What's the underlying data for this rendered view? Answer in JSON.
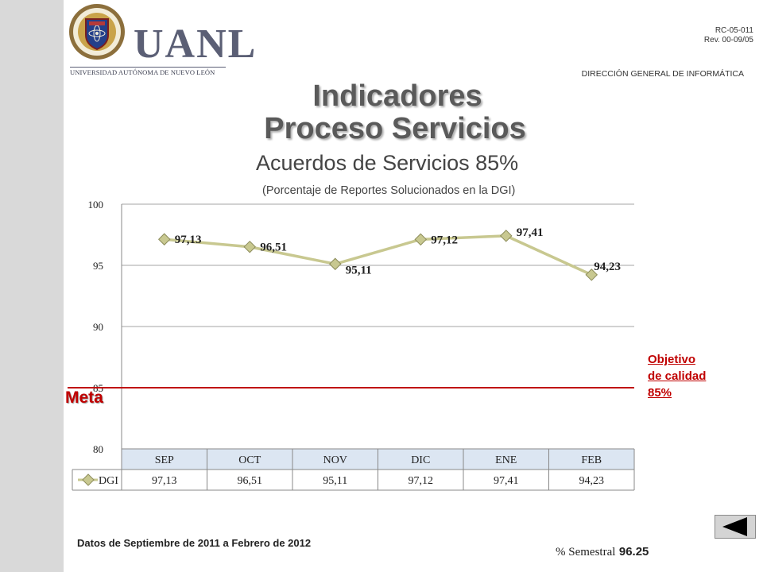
{
  "header": {
    "logo_text": "UANL",
    "logo_subtext": "UNIVERSIDAD AUTÓNOMA DE NUEVO LEÓN",
    "doc_code": "RC-05-011",
    "doc_rev": "Rev. 00-09/05",
    "department": "DIRECCIÓN GENERAL DE INFORMÁTICA"
  },
  "title_line1": "Indicadores",
  "title_line2": "Proceso Servicios",
  "subtitle": "Acuerdos de Servicios  85%",
  "subtitle2": "(Porcentaje de Reportes Solucionados en la DGI)",
  "meta_label": "Meta",
  "objective": {
    "line1": "Objetivo",
    "line2": "de calidad",
    "line3": "85%"
  },
  "footnote": "Datos de Septiembre de 2011  a Febrero de 2012",
  "semestral_label": "% Semestral",
  "semestral_value": "96.25",
  "colors": {
    "series": "#c8c890",
    "target_line": "#c00000",
    "table_header_bg": "#dce6f2",
    "title": "#5a5a5a"
  },
  "chart_data": {
    "type": "line",
    "categories": [
      "SEP",
      "OCT",
      "NOV",
      "DIC",
      "ENE",
      "FEB"
    ],
    "series": [
      {
        "name": "DGI",
        "values": [
          97.13,
          96.51,
          95.11,
          97.12,
          97.41,
          94.23
        ],
        "labels": [
          "97,13",
          "96,51",
          "95,11",
          "97,12",
          "97,41",
          "94,23"
        ]
      }
    ],
    "target": 85,
    "ylim": [
      80,
      100
    ],
    "yticks": [
      80,
      85,
      90,
      95,
      100
    ],
    "grid": true,
    "data_table": true
  }
}
